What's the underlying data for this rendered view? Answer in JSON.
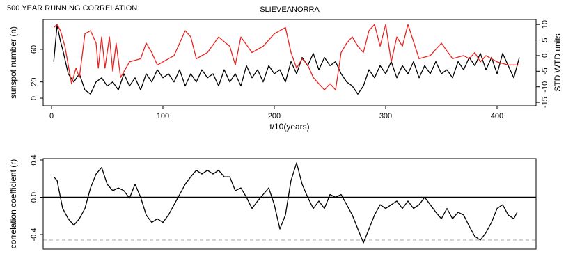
{
  "header": {
    "title": "500 YEAR RUNNING CORRELATION"
  },
  "chart_data": [
    {
      "type": "line",
      "title": "SLIEVEANORRA",
      "xlabel": "t/10(years)",
      "ylabel": "sunspot number (n)",
      "y2label": "STD WTD units",
      "xlim": [
        -7.5,
        435
      ],
      "xticks": [
        0,
        100,
        200,
        300,
        400
      ],
      "ylim": [
        -9.4,
        96.8
      ],
      "yticks": [
        0,
        20,
        60
      ],
      "y2lim": [
        -16.1,
        11.6
      ],
      "y2ticks": [
        -15,
        -10,
        -5,
        0,
        5,
        10
      ],
      "series": [
        {
          "color": "#000000",
          "x": [
            2,
            5,
            8,
            10,
            15,
            20,
            25,
            30,
            35,
            40,
            45,
            50,
            55,
            60,
            65,
            70,
            75,
            80,
            85,
            90,
            95,
            100,
            105,
            110,
            115,
            120,
            125,
            130,
            135,
            140,
            145,
            150,
            155,
            160,
            165,
            170,
            175,
            180,
            185,
            190,
            195,
            200,
            205,
            210,
            215,
            220,
            225,
            230,
            235,
            240,
            245,
            250,
            255,
            260,
            265,
            270,
            275,
            280,
            285,
            290,
            295,
            300,
            305,
            310,
            315,
            320,
            325,
            330,
            335,
            340,
            345,
            350,
            355,
            360,
            365,
            370,
            375,
            380,
            385,
            390,
            395,
            400,
            405,
            410,
            415,
            420
          ],
          "values": [
            45,
            90,
            70,
            60,
            30,
            20,
            30,
            10,
            5,
            20,
            25,
            15,
            20,
            10,
            30,
            15,
            25,
            10,
            30,
            20,
            35,
            25,
            30,
            20,
            35,
            15,
            30,
            20,
            35,
            25,
            30,
            15,
            35,
            20,
            30,
            15,
            40,
            25,
            35,
            20,
            40,
            30,
            35,
            20,
            45,
            30,
            50,
            40,
            55,
            35,
            50,
            40,
            45,
            30,
            20,
            15,
            5,
            15,
            35,
            25,
            40,
            30,
            45,
            25,
            40,
            30,
            45,
            25,
            40,
            30,
            45,
            30,
            35,
            25,
            45,
            35,
            50,
            40,
            55,
            35,
            50,
            30,
            55,
            40,
            25,
            50
          ]
        },
        {
          "color": "#e8231f",
          "axis": "y2",
          "x": [
            2,
            5,
            8,
            12,
            15,
            18,
            22,
            25,
            30,
            35,
            40,
            42,
            45,
            48,
            52,
            55,
            58,
            62,
            70,
            80,
            85,
            90,
            95,
            100,
            110,
            115,
            120,
            125,
            130,
            140,
            150,
            160,
            165,
            170,
            180,
            190,
            200,
            210,
            215,
            220,
            225,
            230,
            235,
            245,
            250,
            255,
            260,
            265,
            270,
            275,
            280,
            285,
            290,
            295,
            300,
            305,
            310,
            315,
            320,
            330,
            340,
            350,
            360,
            370,
            375,
            380,
            385,
            390,
            400,
            410,
            420
          ],
          "values": [
            9,
            10,
            8,
            3,
            -3,
            -9,
            -4,
            -7,
            7,
            8,
            4,
            -4,
            6,
            -4,
            6,
            -5,
            4,
            -7,
            -2,
            -1,
            4,
            1,
            -3,
            -2,
            0,
            4,
            8,
            6,
            -1,
            1,
            6,
            3,
            -3,
            6,
            1,
            3,
            7,
            9,
            1,
            -4,
            -1,
            -3,
            -7,
            -11,
            -9,
            -11,
            1,
            4,
            6,
            3,
            1,
            8,
            10,
            3,
            10,
            -2,
            6,
            3,
            10,
            -1,
            0,
            4,
            -1,
            0,
            -1,
            1,
            -2,
            0,
            -2,
            -3,
            -3
          ]
        }
      ]
    },
    {
      "type": "line",
      "ylabel": "correlation coefficient (r)",
      "xlim": [
        -7.5,
        435
      ],
      "ylim": [
        -0.557,
        0.415
      ],
      "yticks": [
        0.4,
        {
          "value": 0,
          "label": "0.0"
        },
        -0.4
      ],
      "hlines": [
        {
          "value": 0,
          "style": "solid",
          "color": "#000000"
        },
        {
          "value": -0.46,
          "style": "dashed",
          "color": "#aaaaaa"
        }
      ],
      "series": [
        {
          "color": "#000000",
          "x": [
            2,
            5,
            10,
            15,
            20,
            25,
            30,
            35,
            40,
            45,
            50,
            55,
            60,
            65,
            70,
            75,
            80,
            85,
            90,
            95,
            100,
            105,
            110,
            115,
            120,
            125,
            130,
            135,
            140,
            145,
            150,
            155,
            160,
            165,
            170,
            175,
            180,
            185,
            190,
            195,
            200,
            205,
            210,
            215,
            220,
            225,
            230,
            235,
            240,
            245,
            250,
            255,
            260,
            265,
            270,
            275,
            280,
            285,
            290,
            295,
            300,
            305,
            310,
            315,
            320,
            325,
            330,
            335,
            340,
            345,
            350,
            355,
            360,
            365,
            370,
            375,
            380,
            385,
            390,
            395,
            400,
            405,
            410,
            415,
            418
          ],
          "values": [
            0.22,
            0.18,
            -0.12,
            -0.23,
            -0.3,
            -0.23,
            -0.12,
            0.1,
            0.25,
            0.32,
            0.14,
            0.07,
            0.1,
            0.07,
            -0.01,
            0.14,
            0,
            -0.19,
            -0.27,
            -0.23,
            -0.27,
            -0.19,
            -0.08,
            0.03,
            0.14,
            0.22,
            0.29,
            0.25,
            0.29,
            0.25,
            0.29,
            0.22,
            0.22,
            0.07,
            0.1,
            0,
            -0.12,
            -0.04,
            0.03,
            0.1,
            -0.08,
            -0.34,
            -0.19,
            0.18,
            0.37,
            0.14,
            0,
            -0.12,
            -0.04,
            -0.12,
            0.03,
            0,
            0.03,
            -0.08,
            -0.19,
            -0.34,
            -0.49,
            -0.34,
            -0.19,
            -0.08,
            -0.12,
            -0.08,
            -0.04,
            -0.12,
            -0.04,
            -0.12,
            -0.08,
            0,
            -0.08,
            -0.16,
            -0.23,
            -0.12,
            -0.23,
            -0.16,
            -0.19,
            -0.31,
            -0.42,
            -0.46,
            -0.38,
            -0.27,
            -0.12,
            -0.08,
            -0.19,
            -0.23,
            -0.16
          ]
        }
      ]
    }
  ]
}
